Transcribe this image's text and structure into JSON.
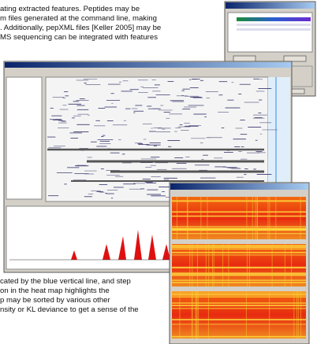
{
  "text_top": {
    "lines": [
      "ating extracted features. Peptides may be",
      "m files generated at the command line, making",
      ". Additionally, pepXML files [Keller 2005] may be",
      "MS sequencing can be integrated with features"
    ]
  },
  "text_bottom": {
    "lines": [
      "cated by the blue vertical line, and step",
      "on in the heat map highlights the",
      "p may be sorted by various other",
      "nsity or KL deviance to get a sense of the"
    ]
  }
}
